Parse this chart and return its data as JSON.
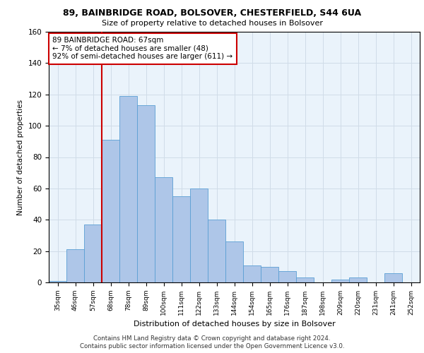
{
  "title_line1": "89, BAINBRIDGE ROAD, BOLSOVER, CHESTERFIELD, S44 6UA",
  "title_line2": "Size of property relative to detached houses in Bolsover",
  "xlabel": "Distribution of detached houses by size in Bolsover",
  "ylabel": "Number of detached properties",
  "categories": [
    "35sqm",
    "46sqm",
    "57sqm",
    "68sqm",
    "78sqm",
    "89sqm",
    "100sqm",
    "111sqm",
    "122sqm",
    "133sqm",
    "144sqm",
    "154sqm",
    "165sqm",
    "176sqm",
    "187sqm",
    "198sqm",
    "209sqm",
    "220sqm",
    "231sqm",
    "241sqm",
    "252sqm"
  ],
  "values": [
    1,
    21,
    37,
    91,
    119,
    113,
    67,
    55,
    60,
    40,
    26,
    11,
    10,
    7,
    3,
    0,
    2,
    3,
    0,
    6,
    0
  ],
  "bar_color": "#aec6e8",
  "bar_edge_color": "#5a9fd4",
  "highlight_color": "#cc0000",
  "highlight_idx": 3,
  "annotation_text": "89 BAINBRIDGE ROAD: 67sqm\n← 7% of detached houses are smaller (48)\n92% of semi-detached houses are larger (611) →",
  "annotation_box_color": "#ffffff",
  "annotation_box_edge": "#cc0000",
  "ylim": [
    0,
    160
  ],
  "yticks": [
    0,
    20,
    40,
    60,
    80,
    100,
    120,
    140,
    160
  ],
  "grid_color": "#d0dce8",
  "background_color": "#eaf3fb",
  "footer_line1": "Contains HM Land Registry data © Crown copyright and database right 2024.",
  "footer_line2": "Contains public sector information licensed under the Open Government Licence v3.0."
}
